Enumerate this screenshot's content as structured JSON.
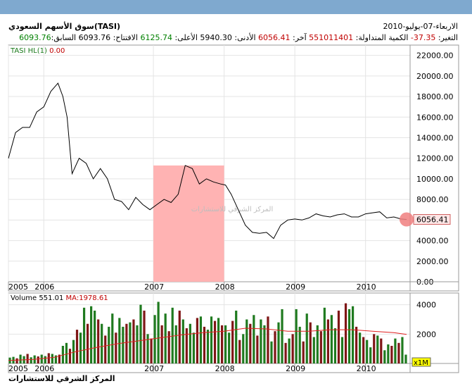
{
  "window": {
    "top_bar_color": "#7fa9cf"
  },
  "header": {
    "title": "سوق الأسهم السعودي(TASI)",
    "date": "الاربعاء-07-يوليو-2010",
    "stats": [
      {
        "label": "التغير:",
        "value": "-37.35",
        "tone": "neg"
      },
      {
        "label": "الكمية المتداولة:",
        "value": "551011401",
        "tone": "neg"
      },
      {
        "label": "آخر:",
        "value": "6056.41",
        "tone": "neg"
      },
      {
        "label": "الأدنى:",
        "value": "5940.30",
        "tone": "k"
      },
      {
        "label": "الأعلى:",
        "value": "6125.74",
        "tone": "pos"
      },
      {
        "label": "الافتتاح:",
        "value": "6093.76",
        "tone": "k"
      },
      {
        "label": "السابق:",
        "value": "6093.76",
        "tone": "pos"
      }
    ]
  },
  "legend": {
    "symbol": "TASI",
    "indicator": "HL(1)",
    "indicator_value": "0.00"
  },
  "watermark": "المركز الشرقي للاستشارات",
  "footer": {
    "brand": "المركز الشرقي للاستشارات"
  },
  "colors": {
    "price_line": "#000000",
    "highlight": "#ffb3b3",
    "marker": "#f07f7f",
    "vol_up": "#1f7a1f",
    "vol_down": "#7f1616",
    "ma": "#e02020"
  },
  "chart_data": [
    {
      "type": "line",
      "title": "TASI",
      "x_ticks": [
        "2005",
        "2006",
        "2007",
        "2008",
        "2009",
        "2010"
      ],
      "x_tick_pos": [
        2004.95,
        2005.45,
        2007.0,
        2008.0,
        2009.0,
        2010.0
      ],
      "xlim": [
        2004.95,
        2010.63
      ],
      "ylim": [
        0,
        23000
      ],
      "y_ticks": [
        "0.00",
        "2000.00",
        "4000.00",
        "6000.00",
        "8000.00",
        "10000.00",
        "12000.00",
        "14000.00",
        "16000.00",
        "18000.00",
        "20000.00",
        "22000.00"
      ],
      "last_value_label": "6056.41",
      "last_value": 6056.41,
      "highlight_x": [
        2007.0,
        2008.0
      ],
      "x": [
        2004.95,
        2005.05,
        2005.15,
        2005.25,
        2005.35,
        2005.45,
        2005.55,
        2005.65,
        2005.72,
        2005.78,
        2005.85,
        2005.95,
        2006.05,
        2006.15,
        2006.25,
        2006.35,
        2006.45,
        2006.55,
        2006.65,
        2006.75,
        2006.85,
        2006.95,
        2007.05,
        2007.15,
        2007.25,
        2007.35,
        2007.45,
        2007.55,
        2007.65,
        2007.75,
        2007.85,
        2007.95,
        2008.02,
        2008.1,
        2008.2,
        2008.3,
        2008.4,
        2008.5,
        2008.6,
        2008.7,
        2008.8,
        2008.9,
        2009.0,
        2009.1,
        2009.2,
        2009.3,
        2009.4,
        2009.5,
        2009.6,
        2009.7,
        2009.8,
        2009.9,
        2010.0,
        2010.1,
        2010.2,
        2010.3,
        2010.4,
        2010.5,
        2010.58
      ],
      "y": [
        12000,
        14500,
        15000,
        15000,
        16500,
        17000,
        18500,
        19300,
        18000,
        16000,
        10500,
        12000,
        11500,
        10000,
        11000,
        10000,
        8000,
        7800,
        7000,
        8200,
        7500,
        7000,
        7500,
        8000,
        7700,
        8500,
        11300,
        11000,
        9500,
        10000,
        9700,
        9500,
        9400,
        8500,
        7000,
        5500,
        4800,
        4700,
        4800,
        4200,
        5500,
        6000,
        6100,
        6000,
        6200,
        6600,
        6400,
        6300,
        6500,
        6600,
        6300,
        6300,
        6600,
        6700,
        6800,
        6200,
        6300,
        6100,
        6056.41
      ]
    },
    {
      "type": "bar",
      "title": "Volume",
      "series": [
        {
          "name": "Volume",
          "last_value": "551.01"
        },
        {
          "name": "MA",
          "last_value": "1978.61"
        }
      ],
      "x_ticks": [
        "2005",
        "2006",
        "2007",
        "2008",
        "2009",
        "2010"
      ],
      "x_tick_pos": [
        2004.95,
        2005.45,
        2007.0,
        2008.0,
        2009.0,
        2010.0
      ],
      "xlim": [
        2004.95,
        2010.63
      ],
      "ylim": [
        0,
        4800
      ],
      "y_ticks": [
        "2000",
        "4000"
      ],
      "y_tick_values": [
        2000,
        4000
      ],
      "unit_label": "x1M",
      "ma_x": [
        2004.95,
        2005.3,
        2005.6,
        2005.9,
        2006.2,
        2006.5,
        2006.8,
        2007.1,
        2007.4,
        2007.7,
        2008.0,
        2008.3,
        2008.6,
        2008.9,
        2009.2,
        2009.5,
        2009.8,
        2010.1,
        2010.4,
        2010.58
      ],
      "ma_y": [
        200,
        280,
        420,
        800,
        1100,
        1350,
        1550,
        1750,
        1950,
        2100,
        2200,
        2400,
        2350,
        2200,
        2200,
        2300,
        2300,
        2200,
        2100,
        1978.61
      ],
      "bar_x": [
        2004.97,
        2005.02,
        2005.07,
        2005.12,
        2005.17,
        2005.22,
        2005.27,
        2005.32,
        2005.37,
        2005.42,
        2005.47,
        2005.52,
        2005.57,
        2005.62,
        2005.67,
        2005.72,
        2005.77,
        2005.82,
        2005.87,
        2005.92,
        2005.97,
        2006.02,
        2006.07,
        2006.12,
        2006.17,
        2006.22,
        2006.27,
        2006.32,
        2006.37,
        2006.42,
        2006.47,
        2006.52,
        2006.57,
        2006.62,
        2006.67,
        2006.72,
        2006.77,
        2006.82,
        2006.87,
        2006.92,
        2006.97,
        2007.02,
        2007.07,
        2007.12,
        2007.17,
        2007.22,
        2007.27,
        2007.32,
        2007.37,
        2007.42,
        2007.47,
        2007.52,
        2007.57,
        2007.62,
        2007.67,
        2007.72,
        2007.77,
        2007.82,
        2007.87,
        2007.92,
        2007.97,
        2008.02,
        2008.07,
        2008.12,
        2008.17,
        2008.22,
        2008.27,
        2008.32,
        2008.37,
        2008.42,
        2008.47,
        2008.52,
        2008.57,
        2008.62,
        2008.67,
        2008.72,
        2008.77,
        2008.82,
        2008.87,
        2008.92,
        2008.97,
        2009.02,
        2009.07,
        2009.12,
        2009.17,
        2009.22,
        2009.27,
        2009.32,
        2009.37,
        2009.42,
        2009.47,
        2009.52,
        2009.57,
        2009.62,
        2009.67,
        2009.72,
        2009.77,
        2009.82,
        2009.87,
        2009.92,
        2009.97,
        2010.02,
        2010.07,
        2010.12,
        2010.17,
        2010.22,
        2010.27,
        2010.32,
        2010.37,
        2010.42,
        2010.47,
        2010.52,
        2010.57
      ],
      "bar_v": [
        400,
        450,
        350,
        600,
        500,
        650,
        420,
        550,
        480,
        600,
        500,
        700,
        650,
        550,
        600,
        1200,
        1400,
        1000,
        1600,
        2300,
        2100,
        3800,
        2700,
        3900,
        3600,
        3000,
        2700,
        1900,
        2500,
        3400,
        2100,
        3100,
        2500,
        2700,
        2800,
        3000,
        2600,
        4000,
        3600,
        2000,
        1700,
        3300,
        4200,
        2600,
        3400,
        2200,
        3800,
        2600,
        3600,
        3000,
        2400,
        2700,
        2100,
        3100,
        3200,
        2500,
        2300,
        3200,
        2900,
        3100,
        2600,
        2600,
        2100,
        2900,
        3600,
        1600,
        2000,
        3000,
        2700,
        3300,
        1900,
        3000,
        2600,
        3200,
        1500,
        2200,
        2800,
        3700,
        1400,
        1700,
        2000,
        3700,
        2500,
        1500,
        3400,
        2800,
        1800,
        2600,
        2200,
        3800,
        3000,
        3300,
        2400,
        3600,
        1800,
        4100,
        3700,
        3900,
        2500,
        2100,
        1800,
        1600,
        1100,
        2000,
        1900,
        1700,
        900,
        1300,
        1200,
        1700,
        1400,
        1800,
        600
      ],
      "bar_up": [
        1,
        1,
        0,
        1,
        1,
        0,
        1,
        1,
        0,
        1,
        1,
        0,
        1,
        1,
        0,
        1,
        1,
        0,
        1,
        0,
        1,
        1,
        0,
        1,
        1,
        0,
        1,
        0,
        1,
        1,
        0,
        1,
        1,
        0,
        1,
        0,
        1,
        1,
        0,
        1,
        0,
        1,
        1,
        0,
        1,
        0,
        1,
        1,
        0,
        1,
        0,
        1,
        1,
        0,
        1,
        0,
        1,
        1,
        0,
        1,
        0,
        1,
        1,
        0,
        1,
        0,
        1,
        1,
        0,
        1,
        0,
        1,
        1,
        0,
        1,
        0,
        1,
        1,
        0,
        1,
        0,
        1,
        1,
        0,
        1,
        0,
        1,
        1,
        0,
        1,
        0,
        1,
        1,
        0,
        1,
        0,
        1,
        1,
        0,
        1,
        0,
        1,
        1,
        0,
        1,
        0,
        1,
        1,
        0,
        1,
        0,
        1,
        1
      ]
    }
  ]
}
